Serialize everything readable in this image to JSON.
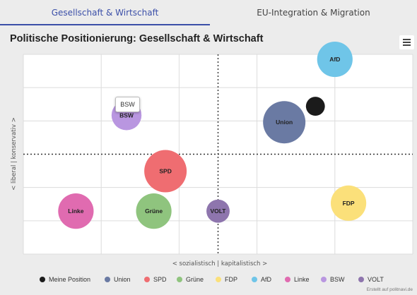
{
  "tabs": [
    {
      "label": "Gesellschaft & Wirtschaft",
      "active": true
    },
    {
      "label": "EU-Integration & Migration",
      "active": false
    }
  ],
  "chart_title": "Politische Positionierung: Gesellschaft & Wirtschaft",
  "menu_icon": "hamburger-menu-icon",
  "tooltip": "BSW",
  "credits": "Erstellt auf politnavi.de",
  "colors": {
    "accent": "#3b4fa8"
  },
  "chart_data": {
    "type": "scatter",
    "title": "Politische Positionierung: Gesellschaft & Wirtschaft",
    "xlabel": "< sozialistisch | kapitalistisch >",
    "ylabel": "< liberal | konservativ >",
    "xlim": [
      -1,
      1
    ],
    "ylim": [
      -1,
      1
    ],
    "grid": true,
    "legend_position": "bottom",
    "series": [
      {
        "name": "Meine Position",
        "color": "#1b1b1b",
        "x": 0.5,
        "y": 0.48,
        "size": 1
      },
      {
        "name": "Union",
        "color": "#6a7aa3",
        "x": 0.34,
        "y": 0.32,
        "size": 5
      },
      {
        "name": "SPD",
        "color": "#ef6d71",
        "x": -0.27,
        "y": -0.17,
        "size": 5
      },
      {
        "name": "Grüne",
        "color": "#8fc47e",
        "x": -0.33,
        "y": -0.57,
        "size": 3.5
      },
      {
        "name": "FDP",
        "color": "#fbe07a",
        "x": 0.67,
        "y": -0.49,
        "size": 3.5
      },
      {
        "name": "AfD",
        "color": "#6fc5e8",
        "x": 0.6,
        "y": 0.95,
        "size": 3.5
      },
      {
        "name": "Linke",
        "color": "#e06bb0",
        "x": -0.73,
        "y": -0.57,
        "size": 3.5
      },
      {
        "name": "BSW",
        "color": "#b996e0",
        "x": -0.47,
        "y": 0.39,
        "size": 2.5
      },
      {
        "name": "VOLT",
        "color": "#8e75ad",
        "x": 0.0,
        "y": -0.57,
        "size": 1.5
      }
    ]
  }
}
